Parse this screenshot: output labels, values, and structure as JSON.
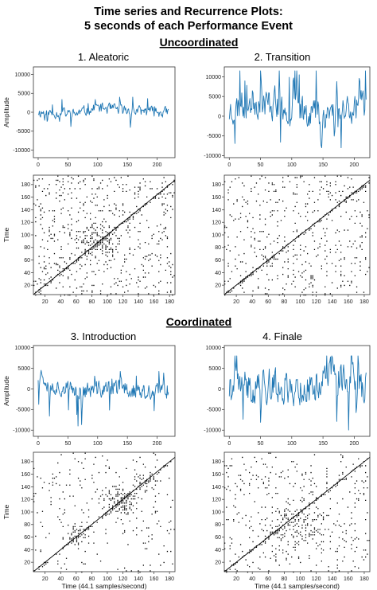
{
  "figure": {
    "title_line1": "Time series and Recurrence Plots:",
    "title_line2": "5 seconds of each Performance Event",
    "section_uncoordinated": "Uncoordinated",
    "section_coordinated": "Coordinated"
  },
  "colors": {
    "series": "#1f77b4",
    "recurrence": "#000000",
    "axis": "#333333"
  },
  "chart_data": [
    {
      "id": "ts1",
      "type": "line",
      "title": "1. Aleatoric",
      "ylabel": "Amplitude",
      "xlabel": "",
      "xlim": [
        -8,
        230
      ],
      "ylim": [
        -12000,
        12000
      ],
      "xticks": [
        0,
        50,
        100,
        150,
        200
      ],
      "yticks": [
        -10000,
        -5000,
        0,
        5000,
        10000
      ],
      "series": [
        {
          "amplitude_range": [
            -4000,
            4000
          ],
          "n_points": 220
        }
      ]
    },
    {
      "id": "ts2",
      "type": "line",
      "title": "2. Transition",
      "ylabel": "",
      "xlabel": "",
      "xlim": [
        -8,
        225
      ],
      "ylim": [
        -10500,
        12500
      ],
      "xticks": [
        0,
        50,
        100,
        150,
        200
      ],
      "yticks": [
        -10000,
        -5000,
        0,
        5000,
        10000
      ],
      "series": [
        {
          "amplitude_range": [
            -8000,
            11500
          ],
          "n_points": 220
        }
      ]
    },
    {
      "id": "rp1",
      "type": "heatmap",
      "subtype": "recurrence",
      "ylabel": "Time",
      "xlabel": "",
      "xlim": [
        5,
        187
      ],
      "ylim": [
        5,
        195
      ],
      "xticks": [
        20,
        40,
        60,
        80,
        100,
        120,
        140,
        160,
        180
      ],
      "yticks": [
        20,
        40,
        60,
        80,
        100,
        120,
        140,
        160,
        180
      ]
    },
    {
      "id": "rp2",
      "type": "heatmap",
      "subtype": "recurrence",
      "ylabel": "",
      "xlabel": "",
      "xlim": [
        5,
        187
      ],
      "ylim": [
        5,
        195
      ],
      "xticks": [
        20,
        40,
        60,
        80,
        100,
        120,
        140,
        160,
        180
      ],
      "yticks": [
        20,
        40,
        60,
        80,
        100,
        120,
        140,
        160,
        180
      ]
    },
    {
      "id": "ts3",
      "type": "line",
      "title": "3. Introduction",
      "ylabel": "Amplitude",
      "xlabel": "",
      "xlim": [
        -8,
        230
      ],
      "ylim": [
        -11500,
        10500
      ],
      "xticks": [
        0,
        50,
        100,
        150,
        200
      ],
      "yticks": [
        -10000,
        -5000,
        0,
        5000,
        10000
      ],
      "series": [
        {
          "amplitude_range": [
            -9000,
            4500
          ],
          "n_points": 220
        }
      ]
    },
    {
      "id": "ts4",
      "type": "line",
      "title": "4. Finale",
      "ylabel": "",
      "xlabel": "",
      "xlim": [
        -8,
        225
      ],
      "ylim": [
        -11500,
        10500
      ],
      "xticks": [
        0,
        50,
        100,
        150,
        200
      ],
      "yticks": [
        -10000,
        -5000,
        0,
        5000,
        10000
      ],
      "series": [
        {
          "amplitude_range": [
            -10500,
            8000
          ],
          "n_points": 220
        }
      ]
    },
    {
      "id": "rp3",
      "type": "heatmap",
      "subtype": "recurrence",
      "ylabel": "Time",
      "xlabel": "Time (44.1 samples/second)",
      "xlim": [
        5,
        187
      ],
      "ylim": [
        5,
        195
      ],
      "xticks": [
        20,
        40,
        60,
        80,
        100,
        120,
        140,
        160,
        180
      ],
      "yticks": [
        20,
        40,
        60,
        80,
        100,
        120,
        140,
        160,
        180
      ]
    },
    {
      "id": "rp4",
      "type": "heatmap",
      "subtype": "recurrence",
      "ylabel": "",
      "xlabel": "Time (44.1 samples/second)",
      "xlim": [
        5,
        187
      ],
      "ylim": [
        5,
        195
      ],
      "xticks": [
        20,
        40,
        60,
        80,
        100,
        120,
        140,
        160,
        180
      ],
      "yticks": [
        20,
        40,
        60,
        80,
        100,
        120,
        140,
        160,
        180
      ]
    }
  ]
}
